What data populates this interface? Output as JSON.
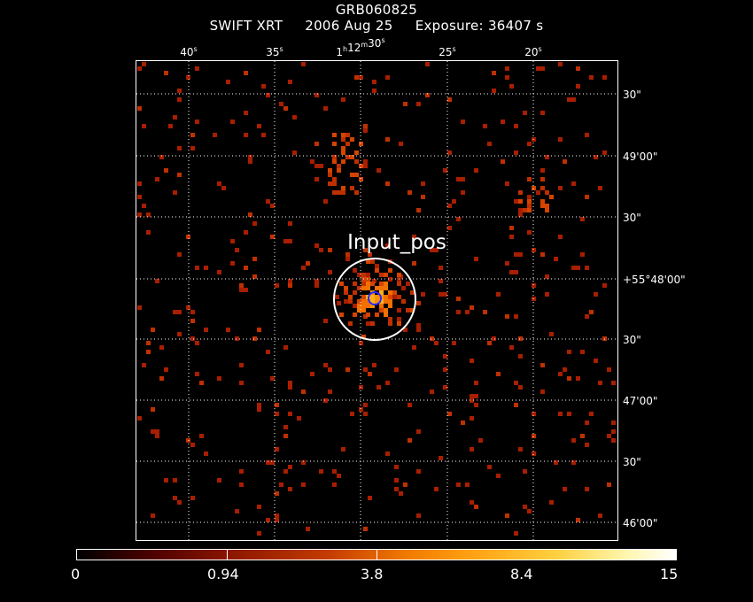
{
  "header": {
    "target": "GRB060825",
    "instrument": "SWIFT XRT",
    "date": "2006 Aug 25",
    "exposure": "Exposure: 36407 s"
  },
  "top_axis": {
    "labels": [
      {
        "main": "40",
        "sup": "s"
      },
      {
        "main": "35",
        "sup": "s"
      },
      {
        "main": "1",
        "sup": "h",
        "main2": "12",
        "sup2": "m",
        "main3": "30",
        "sup3": "s"
      },
      {
        "main": "25",
        "sup": "s"
      },
      {
        "main": "20",
        "sup": "s"
      }
    ]
  },
  "right_axis": {
    "labels": [
      "30\"",
      "49'00\"",
      "30\"",
      "+55°48'00\"",
      "30\"",
      "47'00\"",
      "30\"",
      "46'00\""
    ]
  },
  "source_label": "Input_pos",
  "colorbar": {
    "labels": [
      "0",
      "0.94",
      "3.8",
      "8.4",
      "15"
    ]
  },
  "colors": {
    "background": "#000000",
    "grid": "#ffffff",
    "source_circle": "#ffffff",
    "marker_circle": "#2020ff"
  }
}
